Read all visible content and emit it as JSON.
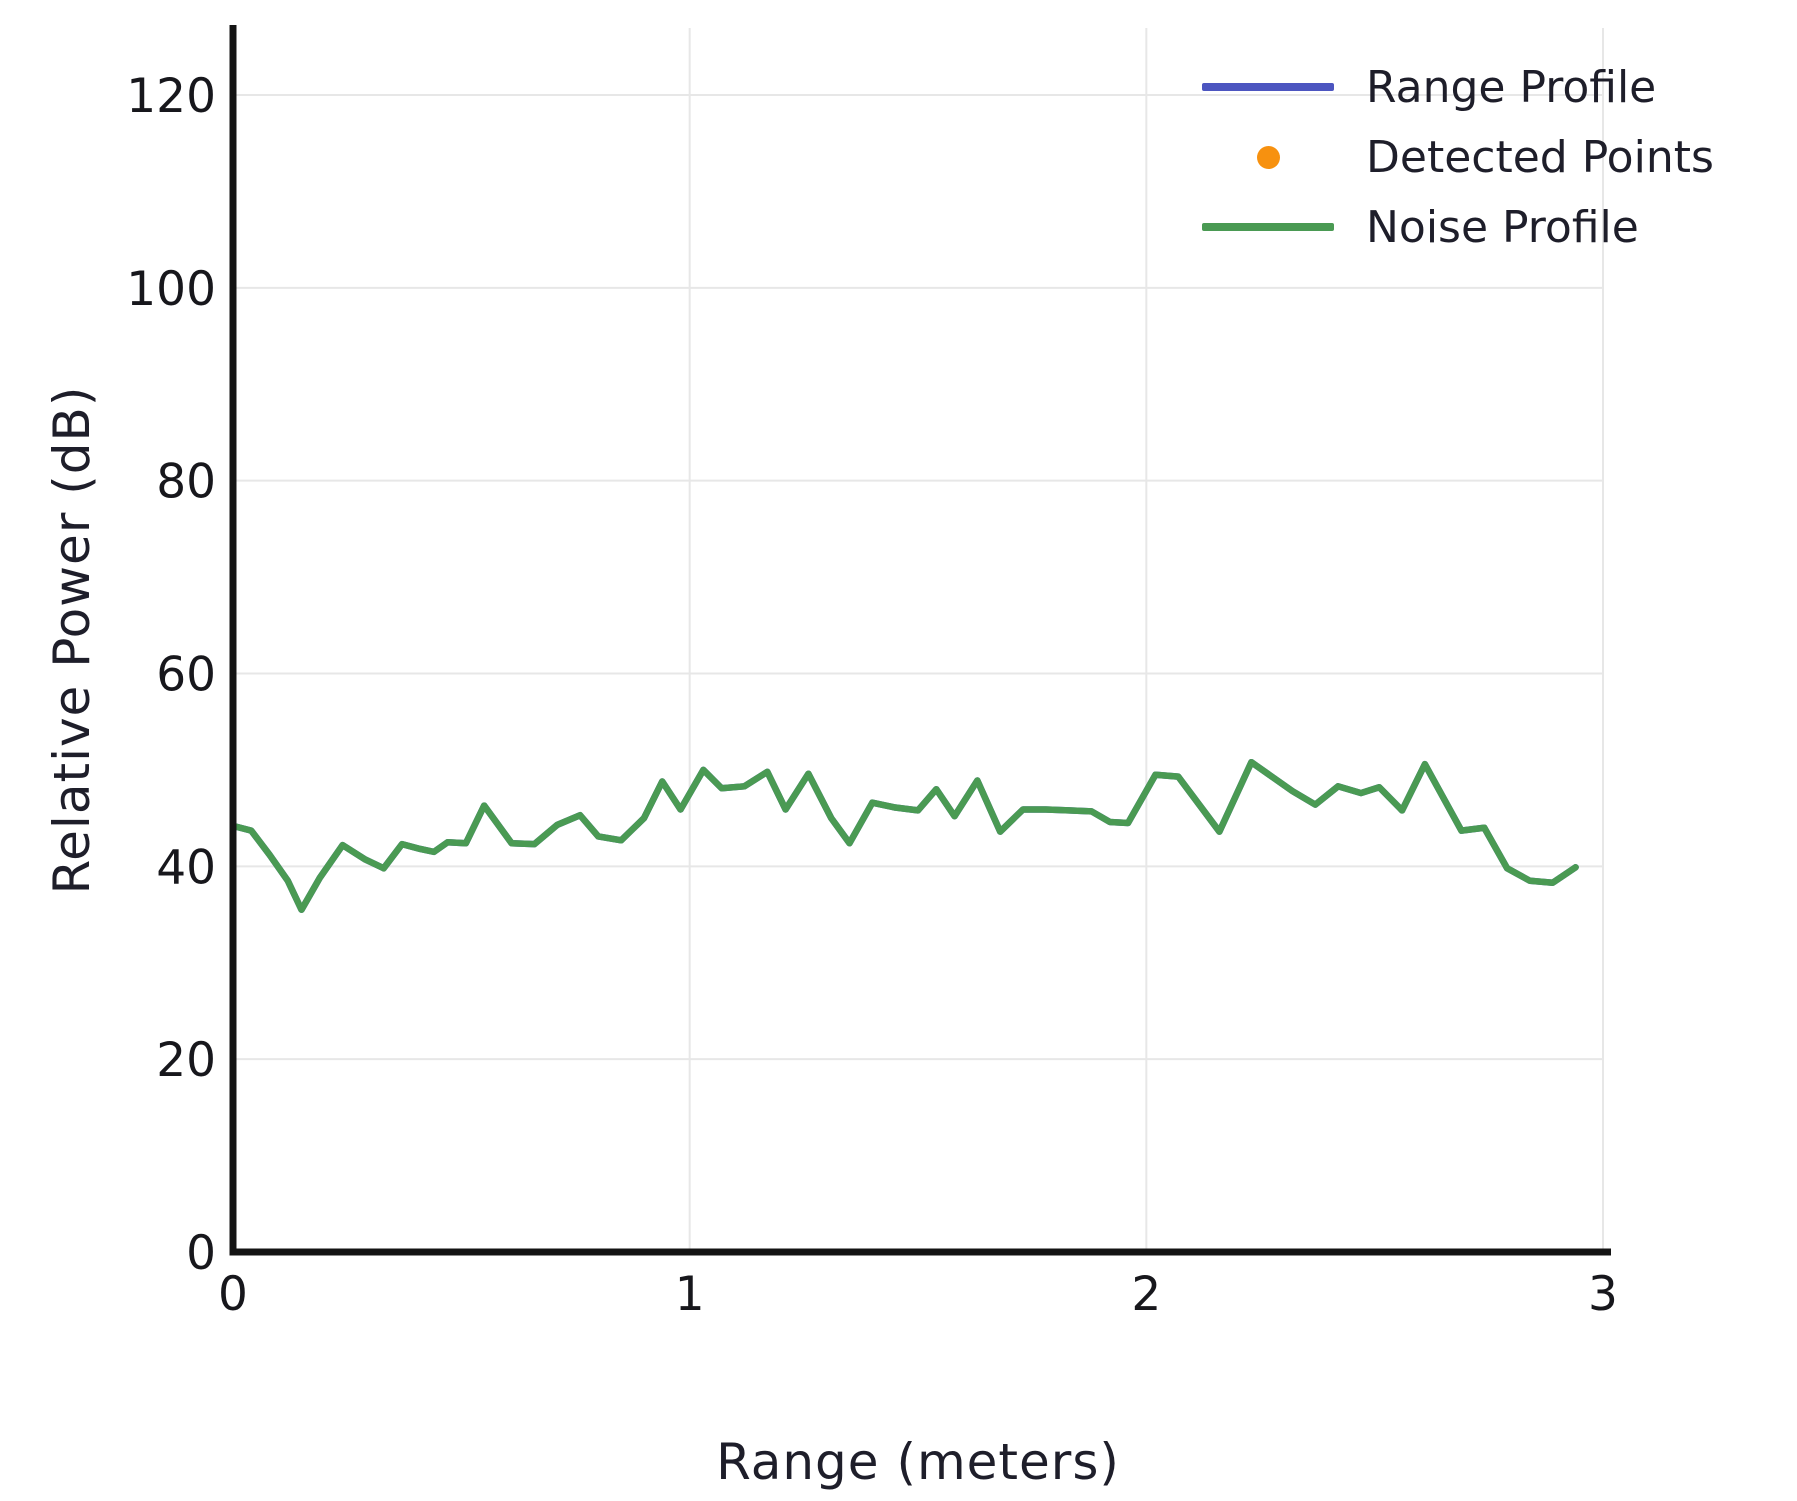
{
  "legend": {
    "items": [
      {
        "label": "Range Profile",
        "swatch": "line"
      },
      {
        "label": "Detected Points",
        "swatch": "dot"
      },
      {
        "label": "Noise Profile",
        "swatch": "line"
      }
    ]
  },
  "colors": {
    "range_profile": "#4c55c0",
    "detected_points": "#f7910f",
    "noise_profile": "#4a9a53",
    "grid": "#e7e7e7",
    "spine": "#141414",
    "text": "#1e1e2a",
    "tick_text": "#17171c"
  },
  "chart_data": {
    "type": "line",
    "title": "",
    "xlabel": "Range (meters)",
    "ylabel": "Relative Power (dB)",
    "xlim": [
      0,
      3
    ],
    "ylim": [
      0,
      127
    ],
    "xticks": [
      0,
      1,
      2,
      3
    ],
    "yticks": [
      0,
      20,
      40,
      60,
      80,
      100,
      120
    ],
    "grid": true,
    "legend_position": "top-right",
    "series": [
      {
        "name": "Range Profile",
        "type": "line",
        "color": "#4c55c0",
        "points": [
          [
            0.0,
            44.2
          ],
          [
            0.04,
            43.7
          ],
          [
            0.08,
            41.2
          ],
          [
            0.12,
            38.5
          ],
          [
            0.15,
            35.5
          ],
          [
            0.19,
            38.8
          ],
          [
            0.24,
            42.2
          ],
          [
            0.29,
            40.7
          ],
          [
            0.33,
            39.8
          ],
          [
            0.37,
            42.3
          ],
          [
            0.41,
            41.8
          ],
          [
            0.44,
            41.5
          ],
          [
            0.47,
            42.5
          ],
          [
            0.51,
            42.4
          ],
          [
            0.55,
            46.3
          ],
          [
            0.61,
            42.4
          ],
          [
            0.66,
            42.3
          ],
          [
            0.71,
            44.3
          ],
          [
            0.76,
            45.3
          ],
          [
            0.8,
            43.1
          ],
          [
            0.85,
            42.7
          ],
          [
            0.9,
            45.0
          ],
          [
            0.94,
            48.8
          ],
          [
            0.98,
            45.9
          ],
          [
            1.03,
            50.0
          ],
          [
            1.07,
            48.1
          ],
          [
            1.12,
            48.3
          ],
          [
            1.17,
            49.8
          ],
          [
            1.21,
            45.9
          ],
          [
            1.26,
            49.6
          ],
          [
            1.31,
            45.0
          ],
          [
            1.35,
            42.4
          ],
          [
            1.4,
            46.6
          ],
          [
            1.45,
            46.1
          ],
          [
            1.5,
            45.8
          ],
          [
            1.54,
            48.0
          ],
          [
            1.58,
            45.2
          ],
          [
            1.63,
            48.9
          ],
          [
            1.68,
            43.6
          ],
          [
            1.73,
            45.9
          ],
          [
            1.78,
            45.9
          ],
          [
            1.83,
            45.8
          ],
          [
            1.88,
            45.7
          ],
          [
            1.92,
            44.6
          ],
          [
            1.96,
            44.5
          ],
          [
            2.02,
            49.5
          ],
          [
            2.07,
            49.3
          ],
          [
            2.16,
            43.6
          ],
          [
            2.23,
            50.8
          ],
          [
            2.32,
            47.8
          ],
          [
            2.37,
            46.4
          ],
          [
            2.42,
            48.3
          ],
          [
            2.47,
            47.6
          ],
          [
            2.51,
            48.2
          ],
          [
            2.56,
            45.8
          ],
          [
            2.61,
            50.6
          ],
          [
            2.69,
            43.7
          ],
          [
            2.74,
            44.0
          ],
          [
            2.79,
            39.8
          ],
          [
            2.84,
            38.5
          ],
          [
            2.89,
            38.3
          ],
          [
            2.94,
            39.9
          ]
        ]
      },
      {
        "name": "Detected Points",
        "type": "scatter",
        "color": "#f7910f",
        "points": []
      },
      {
        "name": "Noise Profile",
        "type": "line",
        "color": "#4a9a53",
        "points": [
          [
            0.0,
            44.2
          ],
          [
            0.04,
            43.7
          ],
          [
            0.08,
            41.2
          ],
          [
            0.12,
            38.5
          ],
          [
            0.15,
            35.5
          ],
          [
            0.19,
            38.8
          ],
          [
            0.24,
            42.2
          ],
          [
            0.29,
            40.7
          ],
          [
            0.33,
            39.8
          ],
          [
            0.37,
            42.3
          ],
          [
            0.41,
            41.8
          ],
          [
            0.44,
            41.5
          ],
          [
            0.47,
            42.5
          ],
          [
            0.51,
            42.4
          ],
          [
            0.55,
            46.3
          ],
          [
            0.61,
            42.4
          ],
          [
            0.66,
            42.3
          ],
          [
            0.71,
            44.3
          ],
          [
            0.76,
            45.3
          ],
          [
            0.8,
            43.1
          ],
          [
            0.85,
            42.7
          ],
          [
            0.9,
            45.0
          ],
          [
            0.94,
            48.8
          ],
          [
            0.98,
            45.9
          ],
          [
            1.03,
            50.0
          ],
          [
            1.07,
            48.1
          ],
          [
            1.12,
            48.3
          ],
          [
            1.17,
            49.8
          ],
          [
            1.21,
            45.9
          ],
          [
            1.26,
            49.6
          ],
          [
            1.31,
            45.0
          ],
          [
            1.35,
            42.4
          ],
          [
            1.4,
            46.6
          ],
          [
            1.45,
            46.1
          ],
          [
            1.5,
            45.8
          ],
          [
            1.54,
            48.0
          ],
          [
            1.58,
            45.2
          ],
          [
            1.63,
            48.9
          ],
          [
            1.68,
            43.6
          ],
          [
            1.73,
            45.9
          ],
          [
            1.78,
            45.9
          ],
          [
            1.83,
            45.8
          ],
          [
            1.88,
            45.7
          ],
          [
            1.92,
            44.6
          ],
          [
            1.96,
            44.5
          ],
          [
            2.02,
            49.5
          ],
          [
            2.07,
            49.3
          ],
          [
            2.16,
            43.6
          ],
          [
            2.23,
            50.8
          ],
          [
            2.32,
            47.8
          ],
          [
            2.37,
            46.4
          ],
          [
            2.42,
            48.3
          ],
          [
            2.47,
            47.6
          ],
          [
            2.51,
            48.2
          ],
          [
            2.56,
            45.8
          ],
          [
            2.61,
            50.6
          ],
          [
            2.69,
            43.7
          ],
          [
            2.74,
            44.0
          ],
          [
            2.79,
            39.8
          ],
          [
            2.84,
            38.5
          ],
          [
            2.89,
            38.3
          ],
          [
            2.94,
            39.9
          ]
        ]
      }
    ]
  }
}
